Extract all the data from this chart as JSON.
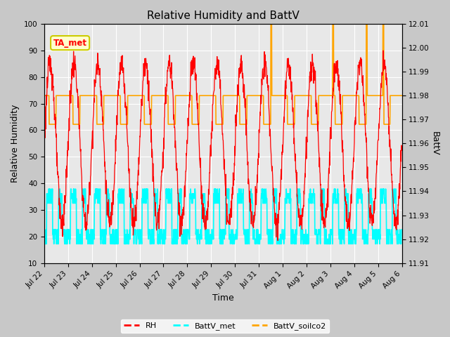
{
  "title": "Relative Humidity and BattV",
  "ylabel_left": "Relative Humidity",
  "ylabel_right": "BattV",
  "xlabel": "Time",
  "ylim_left": [
    10,
    100
  ],
  "ylim_right": [
    11.91,
    12.01
  ],
  "plot_bg_color": "#e8e8e8",
  "fig_bg_color": "#c8c8c8",
  "annotation_text": "TA_met",
  "annotation_color": "red",
  "annotation_bg": "#ffffcc",
  "annotation_edge": "#cccc00",
  "rh_color": "red",
  "battv_met_color": "cyan",
  "battv_soilco2_color": "orange",
  "x_tick_labels": [
    "Jul 22",
    "Jul 23",
    "Jul 24",
    "Jul 25",
    "Jul 26",
    "Jul 27",
    "Jul 28",
    "Jul 29",
    "Jul 30",
    "Jul 31",
    "Aug 1",
    "Aug 2",
    "Aug 3",
    "Aug 4",
    "Aug 5",
    "Aug 6"
  ],
  "left_yticks": [
    10,
    20,
    30,
    40,
    50,
    60,
    70,
    80,
    90,
    100
  ],
  "right_yticks": [
    11.91,
    11.92,
    11.93,
    11.94,
    11.95,
    11.96,
    11.97,
    11.98,
    11.99,
    12.0,
    12.01
  ],
  "num_days": 15,
  "title_fontsize": 11,
  "axis_label_fontsize": 9,
  "tick_fontsize": 7.5,
  "legend_fontsize": 8
}
